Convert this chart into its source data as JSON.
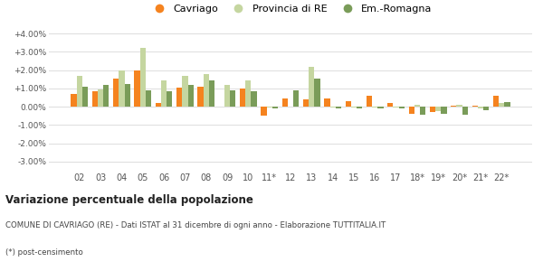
{
  "categories": [
    "02",
    "03",
    "04",
    "05",
    "06",
    "07",
    "08",
    "09",
    "10",
    "11*",
    "12",
    "13",
    "14",
    "15",
    "16",
    "17",
    "18*",
    "19*",
    "20*",
    "21*",
    "22*"
  ],
  "cavriago": [
    0.007,
    0.0085,
    0.0155,
    0.02,
    0.002,
    0.0105,
    0.011,
    0.0003,
    0.01,
    -0.005,
    0.0045,
    0.004,
    0.0045,
    0.0028,
    0.0058,
    0.002,
    -0.0038,
    -0.003,
    0.0008,
    0.0005,
    0.0058
  ],
  "provincia": [
    0.017,
    0.0095,
    0.02,
    0.032,
    0.0145,
    0.017,
    0.018,
    0.012,
    0.0145,
    -0.0005,
    0.0,
    0.022,
    -0.0005,
    -0.0005,
    -0.0005,
    -0.0005,
    0.001,
    -0.0025,
    0.001,
    -0.001,
    0.002
  ],
  "emromagna": [
    0.011,
    0.012,
    0.0125,
    0.009,
    0.0085,
    0.012,
    0.0145,
    0.009,
    0.0085,
    -0.001,
    0.009,
    0.0155,
    -0.0008,
    -0.001,
    -0.0008,
    -0.0008,
    -0.0045,
    -0.004,
    -0.0045,
    -0.002,
    0.0025
  ],
  "cavriago_color": "#f5831f",
  "provincia_color": "#c5d6a0",
  "emromagna_color": "#7a9c59",
  "title": "Variazione percentuale della popolazione",
  "subtitle": "COMUNE DI CAVRIAGO (RE) - Dati ISTAT al 31 dicembre di ogni anno - Elaborazione TUTTITALIA.IT",
  "footnote": "(*) post-censimento",
  "bg_color": "#ffffff",
  "grid_color": "#dddddd",
  "ylim": [
    -0.035,
    0.045
  ],
  "ytick_vals": [
    -0.03,
    -0.02,
    -0.01,
    0.0,
    0.01,
    0.02,
    0.03,
    0.04
  ],
  "ytick_labels": [
    "-3.00%",
    "-2.00%",
    "-1.00%",
    "0.00%",
    "+1.00%",
    "+2.00%",
    "+3.00%",
    "+4.00%"
  ]
}
